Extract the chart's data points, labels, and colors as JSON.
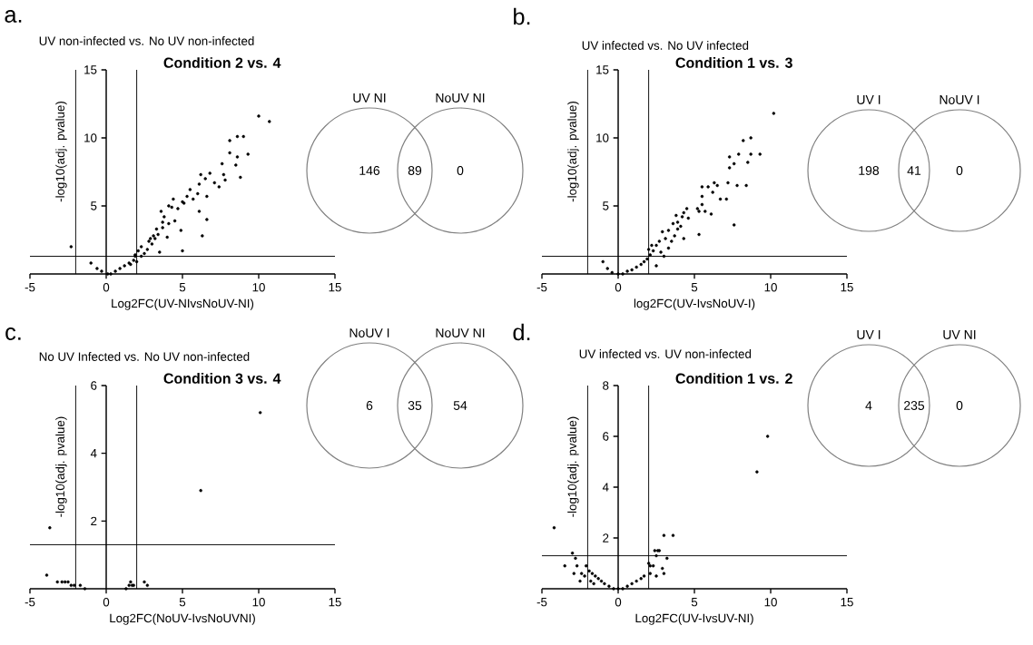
{
  "chart_data": [
    {
      "type": "scatter",
      "title": "Condition 2 vs. 4",
      "subtitle": "UV non-infected vs. No UV non-infected",
      "annotations": [
        "a."
      ],
      "xlabel": "Log2FC(UV-NIvsNoUV-NI)",
      "ylabel": "-log10(adj. pvalue)",
      "color": "#000000",
      "x": [
        10.0,
        10.7,
        8.1,
        8.6,
        9.0,
        8.1,
        8.6,
        9.3,
        8.5,
        8.8,
        7.6,
        6.8,
        6.2,
        7.7,
        7.1,
        7.8,
        7.4,
        6.1,
        6.5,
        5.5,
        5.7,
        6.6,
        6.1,
        6.6,
        6.3,
        5.0,
        4.7,
        4.3,
        4.1,
        3.8,
        3.6,
        4.5,
        4.9,
        4.0,
        3.7,
        3.3,
        3.1,
        2.8,
        3.5,
        5.0,
        2.3,
        2.1,
        1.9,
        1.8,
        1.5,
        1.2,
        0.9,
        0.6,
        0.3,
        0.1,
        -1.0,
        -0.6,
        -0.3,
        -2.3,
        2.7,
        3.0,
        3.2,
        3.7,
        4.4,
        5.3,
        2.5,
        2.3,
        2.0,
        1.6,
        1.9,
        2.9,
        3.4,
        4.1,
        5.1,
        6.0
      ],
      "values": [
        11.6,
        11.2,
        9.8,
        10.1,
        10.1,
        8.9,
        8.6,
        8.8,
        8.0,
        7.1,
        8.1,
        7.4,
        7.3,
        7.3,
        6.7,
        6.9,
        6.4,
        6.6,
        7.0,
        6.2,
        5.5,
        5.7,
        4.6,
        4.0,
        2.8,
        5.3,
        4.8,
        4.9,
        5.0,
        4.2,
        4.6,
        3.9,
        3.2,
        2.7,
        3.4,
        3.3,
        2.8,
        2.4,
        1.6,
        1.7,
        2.0,
        1.7,
        1.4,
        1.0,
        0.8,
        0.6,
        0.4,
        0.2,
        0.0,
        0.0,
        0.8,
        0.4,
        0.2,
        2.0,
        1.8,
        2.2,
        2.6,
        3.8,
        5.5,
        5.7,
        1.5,
        1.3,
        0.9,
        0.7,
        1.3,
        2.6,
        2.9,
        3.7,
        5.2,
        5.9
      ],
      "xlim": [
        -5,
        15
      ],
      "ylim": [
        0,
        15
      ],
      "xticks": [
        -5,
        0,
        5,
        10,
        15
      ],
      "yticks": [
        5,
        10,
        15
      ],
      "ref_lines": [
        {
          "axis": "x",
          "value": -2
        },
        {
          "axis": "x",
          "value": 2
        },
        {
          "axis": "y",
          "value": 1.3
        }
      ]
    },
    {
      "type": "other",
      "categories": [
        "UV NI",
        null,
        "NoUV NI"
      ],
      "values": [
        146,
        89,
        0
      ],
      "data_labels": true,
      "color": "#808080"
    },
    {
      "type": "scatter",
      "title": "Condition 1 vs. 3",
      "subtitle": "UV infected vs. No UV infected",
      "annotations": [
        "b."
      ],
      "xlabel": "log2FC(UV-IvsNoUV-I)",
      "ylabel": "-log10(adj. pvalue)",
      "color": "#000000",
      "x": [
        10.2,
        8.2,
        8.7,
        7.9,
        7.3,
        7.6,
        7.3,
        9.3,
        8.7,
        8.5,
        8.4,
        7.8,
        7.2,
        7.6,
        5.5,
        5.5,
        6.3,
        6.5,
        5.9,
        6.2,
        6.7,
        7.1,
        6.1,
        5.7,
        5.3,
        5.2,
        5.5,
        5.3,
        4.5,
        4.2,
        3.8,
        4.6,
        3.9,
        3.6,
        3.3,
        3.1,
        2.9,
        2.7,
        2.5,
        2.3,
        2.1,
        1.9,
        1.7,
        1.5,
        1.2,
        0.9,
        0.6,
        0.3,
        0.0,
        -0.4,
        -0.7,
        -1.0,
        2.5,
        3.0,
        3.5,
        4.3,
        4.1,
        3.7,
        3.3,
        2.8,
        2.2,
        2.0,
        3.9,
        4.3
      ],
      "values": [
        11.8,
        9.8,
        10.0,
        8.8,
        8.6,
        8.1,
        7.8,
        8.8,
        8.8,
        8.2,
        6.5,
        6.5,
        6.7,
        3.6,
        6.4,
        5.7,
        6.7,
        6.5,
        6.4,
        6.0,
        5.5,
        5.5,
        4.4,
        4.6,
        4.6,
        4.8,
        5.1,
        2.9,
        4.8,
        4.2,
        4.3,
        4.1,
        3.3,
        3.7,
        3.2,
        2.6,
        3.1,
        2.4,
        2.1,
        1.7,
        1.4,
        1.1,
        0.9,
        0.7,
        0.5,
        0.3,
        0.2,
        0.0,
        0.0,
        0.1,
        0.4,
        0.9,
        0.6,
        1.3,
        2.4,
        2.6,
        3.5,
        2.8,
        1.9,
        1.6,
        2.1,
        1.8,
        3.8,
        4.5
      ],
      "xlim": [
        -5,
        15
      ],
      "ylim": [
        0,
        15
      ],
      "xticks": [
        -5,
        0,
        5,
        10,
        15
      ],
      "yticks": [
        5,
        10,
        15
      ],
      "ref_lines": [
        {
          "axis": "x",
          "value": -2
        },
        {
          "axis": "x",
          "value": 2
        },
        {
          "axis": "y",
          "value": 1.3
        }
      ]
    },
    {
      "type": "other",
      "categories": [
        "UV I",
        null,
        "NoUV I"
      ],
      "values": [
        198,
        41,
        0
      ],
      "data_labels": true,
      "color": "#808080"
    },
    {
      "type": "scatter",
      "title": "Condition 3 vs. 4",
      "subtitle": "No UV Infected vs. No UV non-infected",
      "annotations": [
        "c."
      ],
      "xlabel": "Log2FC(NoUV-IvsNoUVNI)",
      "ylabel": "-log10(adj. pvalue)",
      "color": "#000000",
      "x": [
        10.1,
        6.2,
        -3.7,
        -3.9,
        -3.2,
        -2.9,
        -2.7,
        -2.5,
        -2.3,
        -2.1,
        -1.7,
        -1.4,
        1.3,
        1.5,
        1.6,
        1.7,
        1.8,
        2.5,
        2.7
      ],
      "values": [
        5.2,
        2.9,
        1.8,
        0.4,
        0.2,
        0.2,
        0.2,
        0.2,
        0.1,
        0.1,
        0.1,
        0.0,
        0.0,
        0.1,
        0.2,
        0.1,
        0.1,
        0.2,
        0.1
      ],
      "xlim": [
        -5,
        15
      ],
      "ylim": [
        0,
        6
      ],
      "xticks": [
        -5,
        0,
        5,
        10,
        15
      ],
      "yticks": [
        2,
        4,
        6
      ],
      "ref_lines": [
        {
          "axis": "x",
          "value": -2
        },
        {
          "axis": "x",
          "value": 2
        },
        {
          "axis": "y",
          "value": 1.3
        }
      ]
    },
    {
      "type": "other",
      "categories": [
        "NoUV I",
        null,
        "NoUV NI"
      ],
      "values": [
        6,
        35,
        54
      ],
      "data_labels": true,
      "color": "#808080"
    },
    {
      "type": "scatter",
      "title": "Condition 1 vs. 2",
      "subtitle": "UV infected vs. UV non-infected",
      "annotations": [
        "d."
      ],
      "xlabel": "Log2FC(UV-IvsUV-NI)",
      "ylabel": "-log10(adj. pvalue)",
      "color": "#000000",
      "x": [
        9.8,
        9.1,
        -4.2,
        3.0,
        3.6,
        2.6,
        2.4,
        2.7,
        2.5,
        3.2,
        2.0,
        2.1,
        2.3,
        2.9,
        3.0,
        2.1,
        2.5,
        1.7,
        1.5,
        1.2,
        0.9,
        0.6,
        0.3,
        0.0,
        -3.0,
        -2.8,
        -3.5,
        -2.7,
        -2.9,
        -2.4,
        -2.1,
        -1.9,
        -1.7,
        -1.5,
        -1.3,
        -1.1,
        -0.9,
        -0.6,
        -0.3,
        -1.8,
        -2.2,
        -2.5,
        -1.6
      ],
      "values": [
        6.0,
        4.6,
        2.4,
        2.1,
        2.1,
        1.5,
        1.5,
        1.5,
        1.3,
        1.2,
        1.0,
        0.9,
        0.9,
        0.8,
        0.6,
        0.6,
        0.5,
        0.5,
        0.4,
        0.3,
        0.2,
        0.1,
        0.0,
        0.0,
        1.4,
        1.2,
        0.9,
        0.9,
        0.6,
        0.6,
        0.9,
        0.7,
        0.6,
        0.5,
        0.4,
        0.3,
        0.2,
        0.1,
        0.0,
        0.3,
        0.5,
        0.3,
        0.2
      ],
      "xlim": [
        -5,
        15
      ],
      "ylim": [
        0,
        8
      ],
      "xticks": [
        -5,
        0,
        5,
        10,
        15
      ],
      "yticks": [
        2,
        4,
        6,
        8
      ],
      "ref_lines": [
        {
          "axis": "x",
          "value": -2
        },
        {
          "axis": "x",
          "value": 2
        },
        {
          "axis": "y",
          "value": 1.3
        }
      ]
    },
    {
      "type": "other",
      "categories": [
        "UV I",
        null,
        "UV NI"
      ],
      "values": [
        4,
        235,
        0
      ],
      "data_labels": true,
      "color": "#808080"
    }
  ]
}
